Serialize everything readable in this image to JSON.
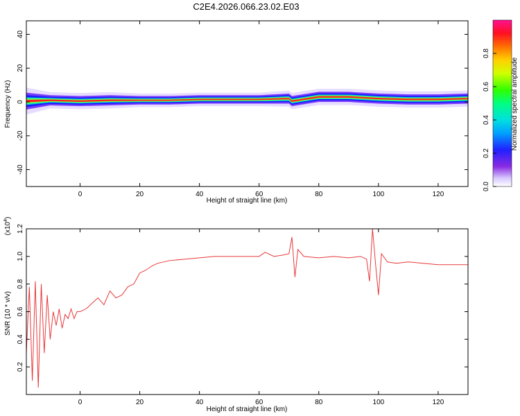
{
  "title": "C2E4.2026.066.23.02.E03",
  "colorbar": {
    "label": "Normalized spectral amplitude",
    "ticks": [
      "0.0",
      "0.2",
      "0.4",
      "0.6",
      "0.8"
    ],
    "tick_values": [
      0.0,
      0.2,
      0.4,
      0.6,
      0.8
    ]
  },
  "chart_data": [
    {
      "type": "heatmap",
      "title": "",
      "xlabel": "Height of straight line (km)",
      "ylabel": "Frequency (Hz)",
      "xlim": [
        -18,
        130
      ],
      "ylim": [
        -50,
        48
      ],
      "xticks": [
        0,
        20,
        40,
        60,
        80,
        100,
        120
      ],
      "yticks": [
        -40,
        -20,
        0,
        20,
        40
      ],
      "ytick_labels": [
        "-40",
        "-20",
        "0",
        "20",
        "40"
      ],
      "colorscale": "rainbow (0 = white/violet, 1 = magenta/red)",
      "band": {
        "description": "narrow high-amplitude band near 0 Hz",
        "x": [
          -18,
          -10,
          0,
          10,
          20,
          30,
          40,
          50,
          60,
          70,
          71,
          80,
          90,
          100,
          110,
          120,
          130
        ],
        "center_hz": [
          0.5,
          1,
          0.5,
          1,
          1,
          1,
          1.5,
          1.5,
          1.5,
          2,
          0.5,
          3,
          3,
          2,
          1.5,
          1.5,
          2
        ],
        "halfwidth_hz": [
          5,
          3,
          3,
          3,
          2.5,
          2.5,
          2.5,
          2.5,
          2.5,
          3,
          3,
          3,
          3,
          3,
          3,
          3,
          3
        ]
      }
    },
    {
      "type": "line",
      "title": "",
      "xlabel": "Height of straight line (km)",
      "ylabel": "SNR (10 * v/v)",
      "yscale_label": "(x10",
      "yscale_exp": "4",
      "xlim": [
        -18,
        130
      ],
      "ylim": [
        0.0,
        1.2
      ],
      "xticks": [
        0,
        20,
        40,
        60,
        80,
        100,
        120
      ],
      "yticks": [
        0.2,
        0.4,
        0.6,
        0.8,
        1.0,
        1.2
      ],
      "ytick_labels": [
        "0.2",
        "0.4",
        "0.6",
        "0.8",
        "1.0",
        "1.2"
      ],
      "color": "#e8383a",
      "series": [
        {
          "name": "",
          "x": [
            -18,
            -17,
            -16,
            -15,
            -14,
            -13,
            -12,
            -11,
            -10,
            -9,
            -8,
            -7,
            -6,
            -5,
            -4,
            -3,
            -2,
            -1,
            0,
            2,
            4,
            6,
            8,
            10,
            12,
            14,
            16,
            18,
            20,
            22,
            24,
            26,
            28,
            30,
            35,
            40,
            45,
            50,
            55,
            60,
            62,
            65,
            68,
            70,
            71,
            72,
            73,
            75,
            80,
            85,
            90,
            94,
            96,
            97,
            98,
            99,
            100,
            101,
            103,
            106,
            110,
            115,
            120,
            125,
            130
          ],
          "y": [
            0.3,
            0.78,
            0.1,
            0.82,
            0.05,
            0.8,
            0.3,
            0.72,
            0.4,
            0.6,
            0.5,
            0.62,
            0.48,
            0.58,
            0.55,
            0.62,
            0.55,
            0.6,
            0.6,
            0.62,
            0.66,
            0.7,
            0.65,
            0.75,
            0.7,
            0.72,
            0.78,
            0.8,
            0.88,
            0.9,
            0.93,
            0.95,
            0.96,
            0.97,
            0.98,
            0.99,
            1.0,
            1.0,
            1.0,
            1.0,
            1.03,
            1.0,
            1.01,
            1.02,
            1.14,
            0.85,
            1.05,
            1.0,
            0.99,
            1.0,
            0.99,
            1.0,
            0.98,
            0.82,
            1.2,
            0.95,
            0.72,
            1.02,
            0.96,
            0.95,
            0.96,
            0.95,
            0.94,
            0.94,
            0.94
          ]
        }
      ]
    }
  ]
}
